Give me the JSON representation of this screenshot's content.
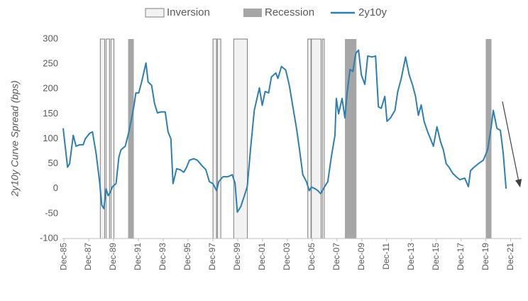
{
  "chart_data": {
    "type": "line",
    "ylabel": "2y10y Curve Spread (bps)",
    "legend": "top",
    "grid": false,
    "xlim": [
      1985.8,
      2022.8
    ],
    "ylim": [
      -100,
      300
    ],
    "yticks": [
      -100,
      -50,
      0,
      50,
      100,
      150,
      200,
      250,
      300
    ],
    "xticks": [
      {
        "value": 1985.92,
        "label": "Dec-85"
      },
      {
        "value": 1987.92,
        "label": "Dec-87"
      },
      {
        "value": 1989.92,
        "label": "Dec-89"
      },
      {
        "value": 1991.92,
        "label": "Dec-91"
      },
      {
        "value": 1993.92,
        "label": "Dec-93"
      },
      {
        "value": 1995.92,
        "label": "Dec-95"
      },
      {
        "value": 1997.92,
        "label": "Dec-97"
      },
      {
        "value": 1999.92,
        "label": "Dec-99"
      },
      {
        "value": 2001.92,
        "label": "Dec-01"
      },
      {
        "value": 2003.92,
        "label": "Dec-03"
      },
      {
        "value": 2005.92,
        "label": "Dec-05"
      },
      {
        "value": 2007.92,
        "label": "Dec-07"
      },
      {
        "value": 2009.92,
        "label": "Dec-09"
      },
      {
        "value": 2011.92,
        "label": "Dec-11"
      },
      {
        "value": 2013.92,
        "label": "Dec-13"
      },
      {
        "value": 2015.92,
        "label": "Dec-15"
      },
      {
        "value": 2017.92,
        "label": "Dec-17"
      },
      {
        "value": 2019.92,
        "label": "Dec-19"
      },
      {
        "value": 2021.92,
        "label": "Dec-21"
      }
    ],
    "bands": [
      {
        "name": "Inversion",
        "color": "#f2f2f2",
        "edge": "#7f7f7f",
        "ranges": [
          [
            1988.85,
            1989.2
          ],
          [
            1989.31,
            1989.6
          ],
          [
            1989.71,
            1989.95
          ],
          [
            1997.93,
            1998.22
          ],
          [
            1998.28,
            1998.56
          ],
          [
            1999.6,
            2000.7
          ],
          [
            2005.57,
            2005.83
          ],
          [
            2005.86,
            2006.64
          ],
          [
            2006.75,
            2006.9
          ]
        ]
      },
      {
        "name": "Recession",
        "color": "#a6a6a6",
        "ranges": [
          [
            1991.09,
            1991.55
          ],
          [
            2008.56,
            2009.49
          ],
          [
            2019.91,
            2020.37
          ]
        ]
      }
    ],
    "series": [
      {
        "name": "2y10y",
        "color": "#2e7fad",
        "x": [
          1985.86,
          1986.21,
          1986.38,
          1986.67,
          1986.9,
          1987.18,
          1987.47,
          1987.64,
          1987.99,
          1988.22,
          1988.51,
          1988.79,
          1988.97,
          1989.14,
          1989.31,
          1989.48,
          1989.66,
          1989.83,
          1990.12,
          1990.35,
          1990.52,
          1990.86,
          1991.15,
          1991.38,
          1991.55,
          1991.72,
          1991.95,
          1992.18,
          1992.53,
          1992.7,
          1992.99,
          1993.22,
          1993.45,
          1993.74,
          1994.08,
          1994.31,
          1994.54,
          1994.71,
          1995.0,
          1995.29,
          1995.58,
          1995.81,
          1996.03,
          1996.38,
          1996.67,
          1997.01,
          1997.36,
          1997.64,
          1997.93,
          1998.22,
          1998.39,
          1998.74,
          1999.14,
          1999.48,
          1999.71,
          1999.89,
          2000.17,
          2000.46,
          2000.69,
          2000.98,
          2001.26,
          2001.67,
          2001.9,
          2002.13,
          2002.41,
          2002.64,
          2002.99,
          2003.16,
          2003.45,
          2003.79,
          2004.08,
          2004.37,
          2004.66,
          2004.89,
          2005.17,
          2005.46,
          2005.69,
          2005.86,
          2006.15,
          2006.38,
          2006.61,
          2006.9,
          2007.18,
          2007.47,
          2007.76,
          2007.87,
          2008.05,
          2008.33,
          2008.56,
          2008.74,
          2008.97,
          2009.2,
          2009.43,
          2009.66,
          2009.89,
          2010.17,
          2010.4,
          2010.75,
          2011.03,
          2011.26,
          2011.49,
          2011.78,
          2011.95,
          2012.24,
          2012.59,
          2012.82,
          2013.1,
          2013.45,
          2013.74,
          2014.02,
          2014.25,
          2014.48,
          2014.71,
          2014.94,
          2015.23,
          2015.46,
          2015.69,
          2015.98,
          2016.26,
          2016.49,
          2016.72,
          2016.95,
          2017.24,
          2017.53,
          2017.82,
          2018.22,
          2018.51,
          2018.68,
          2018.97,
          2019.31,
          2019.71,
          2020.06,
          2020.35,
          2020.52,
          2020.81,
          2021.09,
          2021.32,
          2021.55
        ],
        "values": [
          121,
          43,
          50,
          107,
          85,
          88,
          88,
          100,
          111,
          114,
          71,
          14,
          -33,
          -40,
          0,
          -14,
          -7,
          4,
          10,
          64,
          78,
          85,
          114,
          142,
          164,
          192,
          192,
          214,
          252,
          214,
          207,
          171,
          152,
          154,
          154,
          114,
          100,
          10,
          40,
          38,
          33,
          43,
          57,
          60,
          57,
          47,
          38,
          14,
          10,
          -4,
          14,
          24,
          24,
          28,
          11,
          -47,
          -36,
          -14,
          4,
          85,
          157,
          202,
          167,
          195,
          192,
          224,
          232,
          221,
          245,
          238,
          207,
          164,
          121,
          81,
          28,
          14,
          -4,
          3,
          0,
          -4,
          -10,
          3,
          14,
          64,
          107,
          181,
          150,
          181,
          142,
          192,
          239,
          235,
          271,
          278,
          228,
          209,
          266,
          264,
          266,
          164,
          161,
          185,
          135,
          142,
          157,
          195,
          221,
          264,
          228,
          207,
          185,
          147,
          168,
          135,
          114,
          100,
          85,
          124,
          95,
          78,
          50,
          43,
          31,
          24,
          18,
          21,
          4,
          36,
          43,
          50,
          57,
          78,
          124,
          157,
          121,
          117,
          71,
          0
        ]
      }
    ]
  }
}
